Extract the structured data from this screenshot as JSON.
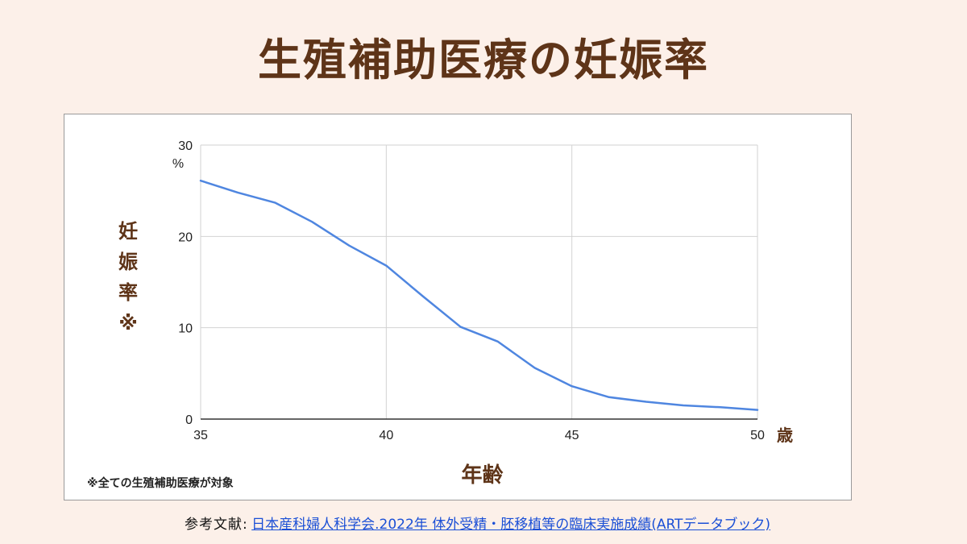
{
  "page_title": "生殖補助医療の妊娠率",
  "footnote": "※全ての生殖補助医療が対象",
  "citation": {
    "label": "参考文献",
    "separator": ":",
    "link_text": "日本産科婦人科学会.2022年 体外受精・胚移植等の臨床実施成績(ARTデータブック)"
  },
  "chart_data": {
    "type": "line",
    "title": "",
    "xlabel": "年齢",
    "ylabel": "妊娠率※",
    "x_unit": "歳",
    "y_unit": "%",
    "xlim": [
      35,
      50
    ],
    "ylim": [
      0,
      30
    ],
    "x_ticks": [
      35,
      40,
      45,
      50
    ],
    "y_ticks": [
      0,
      10,
      20,
      30
    ],
    "grid": true,
    "line_color": "#4f86e0",
    "series": [
      {
        "x": [
          35,
          36,
          37,
          38,
          39,
          40,
          41,
          42,
          43,
          44,
          45,
          46,
          47,
          48,
          49,
          50
        ],
        "values": [
          26.1,
          24.8,
          23.7,
          21.6,
          19.0,
          16.8,
          13.4,
          10.1,
          8.5,
          5.6,
          3.6,
          2.4,
          1.9,
          1.5,
          1.3,
          1.0
        ]
      }
    ]
  }
}
